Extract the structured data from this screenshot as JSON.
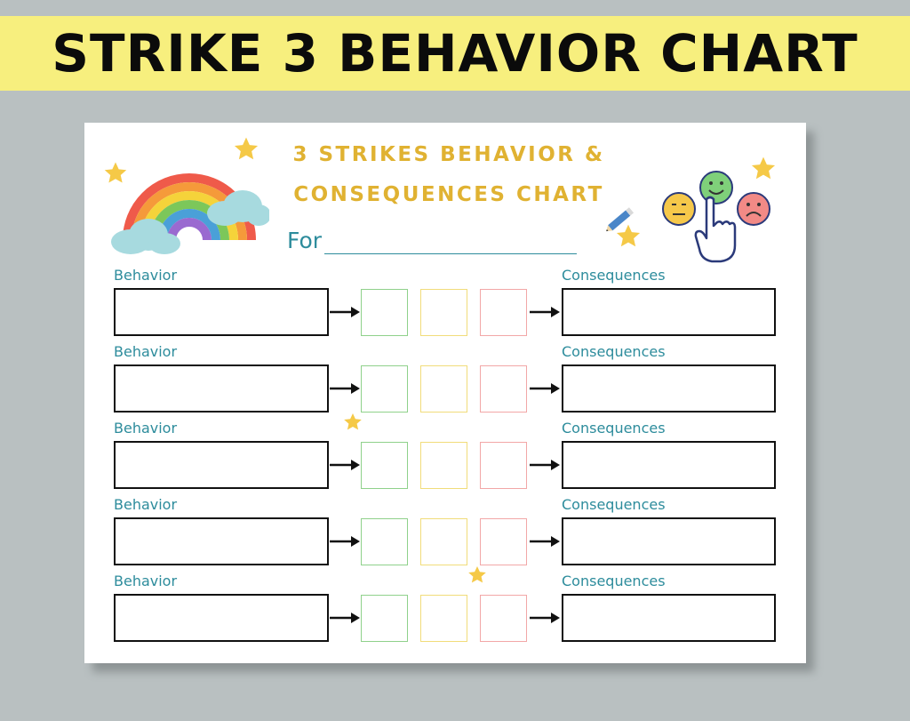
{
  "banner": {
    "title": "STRIKE 3 BEHAVIOR CHART"
  },
  "sheet": {
    "title_line1": "3 STRIKES BEHAVIOR &",
    "title_line2": "CONSEQUENCES CHART",
    "for_label": "For"
  },
  "colors": {
    "banner_bg": "#f7ef7e",
    "page_bg": "#b9c0c1",
    "title": "#e0b232",
    "label": "#2d8c9c",
    "strike_1": "#8fd18b",
    "strike_2": "#f1dc7a",
    "strike_3": "#f2a7a7"
  },
  "icons": [
    "rainbow-icon",
    "star-icon",
    "pencil-icon",
    "neutral-face-icon",
    "happy-face-icon",
    "sad-face-icon",
    "pointing-hand-icon",
    "arrow-right-icon"
  ],
  "rows": [
    {
      "behavior_label": "Behavior",
      "consequence_label": "Consequences"
    },
    {
      "behavior_label": "Behavior",
      "consequence_label": "Consequences"
    },
    {
      "behavior_label": "Behavior",
      "consequence_label": "Consequences"
    },
    {
      "behavior_label": "Behavior",
      "consequence_label": "Consequences"
    },
    {
      "behavior_label": "Behavior",
      "consequence_label": "Consequences"
    }
  ]
}
